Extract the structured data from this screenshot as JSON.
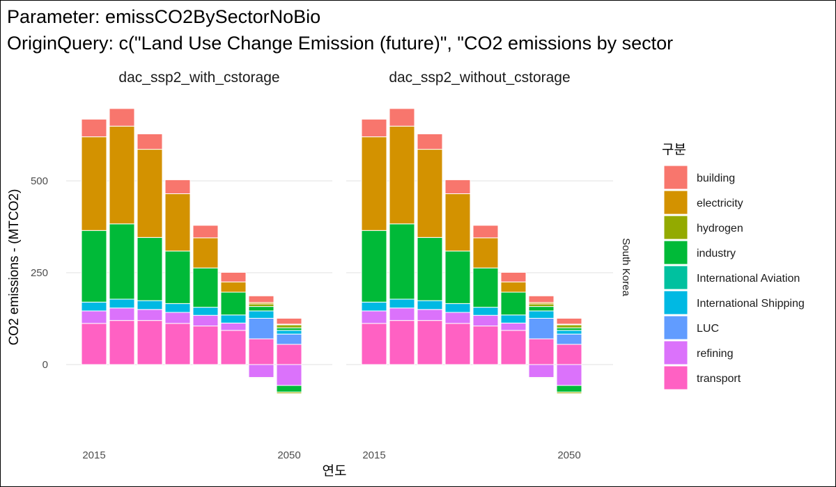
{
  "title_lines": [
    "Parameter: emissCO2BySectorNoBio",
    "OriginQuery: c(\"Land Use Change Emission (future)\", \"CO2 emissions by sector"
  ],
  "chart_data": {
    "type": "bar",
    "stacked": true,
    "xlabel": "연도",
    "ylabel": "CO2 emissions - (MTCO2)",
    "x": [
      2015,
      2020,
      2025,
      2030,
      2035,
      2040,
      2045,
      2050
    ],
    "x_tick_labels": [
      "2015",
      "2050"
    ],
    "y_ticks": [
      0,
      250,
      500
    ],
    "ylim": [
      -100,
      710
    ],
    "grid": true,
    "legend_title": "구분",
    "legend_position": "right",
    "row_label": "South Korea",
    "sector_colors": {
      "building": "#F8766D",
      "electricity": "#D39200",
      "hydrogen": "#93AA00",
      "industry": "#00BA38",
      "International Aviation": "#00C19F",
      "International Shipping": "#00B9E3",
      "LUC": "#619CFF",
      "refining": "#DB72FB",
      "transport": "#FF61C3"
    },
    "panels": [
      {
        "name": "dac_ssp2_with_cstorage",
        "series": [
          {
            "name": "building",
            "values": [
              48,
              48,
              42,
              38,
              34,
              26,
              18,
              16
            ]
          },
          {
            "name": "electricity",
            "values": [
              255,
              266,
              240,
              156,
              82,
              28,
              4,
              2
            ]
          },
          {
            "name": "hydrogen",
            "values": [
              0,
              0,
              0,
              0,
              0,
              0,
              7,
              8
            ]
          },
          {
            "name": "industry",
            "values": [
              195,
              205,
              172,
              143,
              107,
              62,
              12,
              7
            ]
          },
          {
            "name": "International Aviation",
            "values": [
              0,
              0,
              0,
              0,
              0,
              0,
              0,
              0
            ]
          },
          {
            "name": "International Shipping",
            "values": [
              24,
              24,
              24,
              24,
              22,
              22,
              20,
              10
            ]
          },
          {
            "name": "LUC",
            "values": [
              0,
              0,
              0,
              0,
              0,
              0,
              56,
              28
            ]
          },
          {
            "name": "refining",
            "values": [
              34,
              34,
              30,
              30,
              29,
              20,
              -35,
              -57
            ]
          },
          {
            "name": "transport",
            "values": [
              112,
              120,
              120,
              112,
              105,
              93,
              70,
              55
            ]
          }
        ],
        "negative_series": [
          {
            "name": "industry",
            "values": [
              0,
              0,
              0,
              0,
              0,
              0,
              0,
              -18
            ]
          },
          {
            "name": "hydrogen",
            "values": [
              0,
              0,
              0,
              0,
              0,
              0,
              -2,
              -4
            ]
          }
        ]
      },
      {
        "name": "dac_ssp2_without_cstorage",
        "series": [
          {
            "name": "building",
            "values": [
              48,
              48,
              42,
              38,
              34,
              26,
              18,
              16
            ]
          },
          {
            "name": "electricity",
            "values": [
              255,
              266,
              240,
              156,
              82,
              28,
              4,
              2
            ]
          },
          {
            "name": "hydrogen",
            "values": [
              0,
              0,
              0,
              0,
              0,
              0,
              7,
              8
            ]
          },
          {
            "name": "industry",
            "values": [
              195,
              205,
              172,
              143,
              107,
              62,
              12,
              7
            ]
          },
          {
            "name": "International Aviation",
            "values": [
              0,
              0,
              0,
              0,
              0,
              0,
              0,
              0
            ]
          },
          {
            "name": "International Shipping",
            "values": [
              24,
              24,
              24,
              24,
              22,
              22,
              20,
              10
            ]
          },
          {
            "name": "LUC",
            "values": [
              0,
              0,
              0,
              0,
              0,
              0,
              56,
              28
            ]
          },
          {
            "name": "refining",
            "values": [
              34,
              34,
              30,
              30,
              29,
              20,
              -35,
              -57
            ]
          },
          {
            "name": "transport",
            "values": [
              112,
              120,
              120,
              112,
              105,
              93,
              70,
              55
            ]
          }
        ],
        "negative_series": [
          {
            "name": "industry",
            "values": [
              0,
              0,
              0,
              0,
              0,
              0,
              0,
              -18
            ]
          },
          {
            "name": "hydrogen",
            "values": [
              0,
              0,
              0,
              0,
              0,
              0,
              -2,
              -4
            ]
          }
        ]
      }
    ]
  }
}
